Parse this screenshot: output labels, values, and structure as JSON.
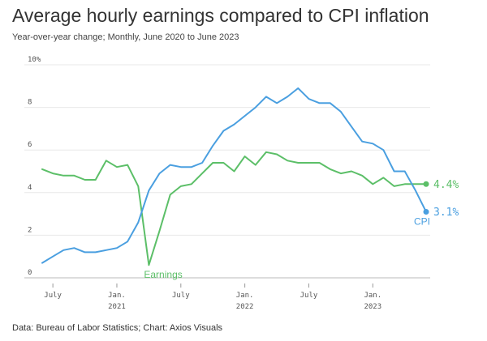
{
  "header": {
    "title": "Average hourly earnings compared to CPI inflation",
    "subtitle": "Year-over-year change; Monthly, June 2020 to June 2023"
  },
  "footer": {
    "source": "Data: Bureau of Labor Statistics; Chart: Axios Visuals"
  },
  "colors": {
    "cpi": "#4a9fe0",
    "earnings": "#5cbf68"
  },
  "chart_data": {
    "type": "line",
    "title": "Average hourly earnings compared to CPI inflation",
    "subtitle": "Year-over-year change; Monthly, June 2020 to June 2023",
    "xlabel": "",
    "ylabel": "",
    "ylim": [
      0,
      10
    ],
    "yticks": [
      0,
      2,
      4,
      6,
      8,
      10
    ],
    "ytick_labels": [
      "0",
      "2",
      "4",
      "6",
      "8",
      "10%"
    ],
    "x": [
      "2020-06",
      "2020-07",
      "2020-08",
      "2020-09",
      "2020-10",
      "2020-11",
      "2020-12",
      "2021-01",
      "2021-02",
      "2021-03",
      "2021-04",
      "2021-05",
      "2021-06",
      "2021-07",
      "2021-08",
      "2021-09",
      "2021-10",
      "2021-11",
      "2021-12",
      "2022-01",
      "2022-02",
      "2022-03",
      "2022-04",
      "2022-05",
      "2022-06",
      "2022-07",
      "2022-08",
      "2022-09",
      "2022-10",
      "2022-11",
      "2022-12",
      "2023-01",
      "2023-02",
      "2023-03",
      "2023-04",
      "2023-05",
      "2023-06"
    ],
    "xticks": [
      {
        "index": 1,
        "label": "July",
        "year": ""
      },
      {
        "index": 7,
        "label": "Jan.",
        "year": "2021"
      },
      {
        "index": 13,
        "label": "July",
        "year": ""
      },
      {
        "index": 19,
        "label": "Jan.",
        "year": "2022"
      },
      {
        "index": 25,
        "label": "July",
        "year": ""
      },
      {
        "index": 31,
        "label": "Jan.",
        "year": "2023"
      }
    ],
    "series": [
      {
        "name": "CPI",
        "end_label": "3.1%",
        "values": [
          0.7,
          1.0,
          1.3,
          1.4,
          1.2,
          1.2,
          1.3,
          1.4,
          1.7,
          2.6,
          4.1,
          4.9,
          5.3,
          5.2,
          5.2,
          5.4,
          6.2,
          6.9,
          7.2,
          7.6,
          8.0,
          8.5,
          8.2,
          8.5,
          8.9,
          8.4,
          8.2,
          8.2,
          7.8,
          7.1,
          6.4,
          6.3,
          6.0,
          5.0,
          5.0,
          4.1,
          3.1
        ]
      },
      {
        "name": "Earnings",
        "end_label": "4.4%",
        "values": [
          5.1,
          4.9,
          4.8,
          4.8,
          4.6,
          4.6,
          5.5,
          5.2,
          5.3,
          4.3,
          0.6,
          2.2,
          3.9,
          4.3,
          4.4,
          4.9,
          5.4,
          5.4,
          5.0,
          5.7,
          5.3,
          5.9,
          5.8,
          5.5,
          5.4,
          5.4,
          5.4,
          5.1,
          4.9,
          5.0,
          4.8,
          4.4,
          4.7,
          4.3,
          4.4,
          4.4,
          4.4
        ]
      }
    ]
  }
}
